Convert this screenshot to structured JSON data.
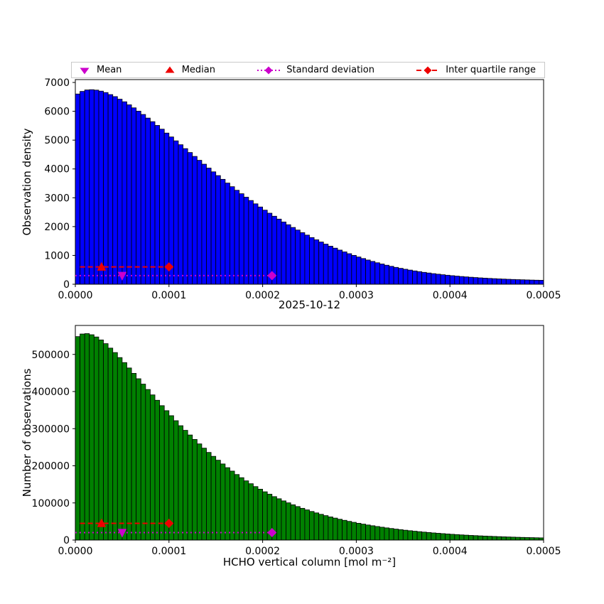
{
  "figure": {
    "date_title": "2025-10-12",
    "xlabel": "HCHO vertical column [mol m⁻²]",
    "colors": {
      "mean": "#cc00cc",
      "median": "#ee0000",
      "std": "#cc00cc",
      "iqr": "#ee0000",
      "axis": "#000000",
      "background": "#ffffff"
    },
    "legend": [
      {
        "label": "Mean",
        "marker": "triangle-down-icon"
      },
      {
        "label": "Median",
        "marker": "triangle-up-icon"
      },
      {
        "label": "Standard deviation",
        "marker": "diamond-dotted-line-icon"
      },
      {
        "label": "Inter quartile range",
        "marker": "diamond-dashed-line-icon"
      }
    ]
  },
  "chart_data": [
    {
      "type": "bar",
      "name": "observation-density-histogram",
      "ylabel": "Observation density",
      "bar_color": "#0000ff",
      "edge_color": "#000000",
      "x_start": 0,
      "x_end": 0.0005,
      "bins": 100,
      "xlim": [
        0,
        0.0005
      ],
      "ylim": [
        0,
        7100
      ],
      "xticks": {
        "values": [
          0,
          0.0001,
          0.0002,
          0.0003,
          0.0004,
          0.0005
        ],
        "labels": [
          "0.0000",
          "0.0001",
          "0.0002",
          "0.0003",
          "0.0004",
          "0.0005"
        ]
      },
      "yticks": {
        "values": [
          0,
          1000,
          2000,
          3000,
          4000,
          5000,
          6000,
          7000
        ],
        "labels": [
          "0",
          "1000",
          "2000",
          "3000",
          "4000",
          "5000",
          "6000",
          "7000"
        ]
      },
      "values": [
        6600,
        6690,
        6740,
        6750,
        6735,
        6700,
        6650,
        6580,
        6510,
        6420,
        6330,
        6225,
        6120,
        6005,
        5890,
        5765,
        5640,
        5510,
        5380,
        5245,
        5110,
        4975,
        4840,
        4705,
        4570,
        4435,
        4300,
        4165,
        4030,
        3900,
        3770,
        3640,
        3510,
        3385,
        3260,
        3140,
        3020,
        2905,
        2790,
        2680,
        2570,
        2465,
        2360,
        2260,
        2160,
        2065,
        1970,
        1880,
        1790,
        1705,
        1620,
        1542,
        1465,
        1392,
        1320,
        1252,
        1185,
        1122,
        1060,
        1002,
        945,
        892,
        840,
        792,
        745,
        702,
        660,
        622,
        585,
        552,
        520,
        491,
        462,
        437,
        412,
        390,
        368,
        349,
        330,
        313,
        297,
        282,
        268,
        255,
        243,
        232,
        221,
        211,
        202,
        194,
        186,
        179,
        172,
        166,
        160,
        155,
        150,
        145,
        141,
        137
      ],
      "stats": {
        "mean_x": 5e-05,
        "median_x": 2.8e-05,
        "std_span": [
          0,
          0.00021
        ],
        "iqr_span": [
          5e-06,
          0.0001
        ],
        "mean_line_y": 300,
        "iqr_line_y": 600
      }
    },
    {
      "type": "bar",
      "name": "number-of-observations-histogram",
      "ylabel": "Number of observations",
      "bar_color": "#008000",
      "edge_color": "#000000",
      "x_start": 0,
      "x_end": 0.0005,
      "bins": 100,
      "xlim": [
        0,
        0.0005
      ],
      "ylim": [
        0,
        578000
      ],
      "xticks": {
        "values": [
          0,
          0.0001,
          0.0002,
          0.0003,
          0.0004,
          0.0005
        ],
        "labels": [
          "0.0000",
          "0.0001",
          "0.0002",
          "0.0003",
          "0.0004",
          "0.0005"
        ]
      },
      "yticks": {
        "values": [
          0,
          100000,
          200000,
          300000,
          400000,
          500000
        ],
        "labels": [
          "0",
          "100000",
          "200000",
          "300000",
          "400000",
          "500000"
        ]
      },
      "values": [
        548000,
        555000,
        556000,
        553000,
        547000,
        539000,
        529000,
        517000,
        505000,
        491500,
        478000,
        463500,
        449000,
        434500,
        420000,
        405500,
        391000,
        376500,
        362000,
        348500,
        335000,
        321500,
        308000,
        295500,
        283000,
        271000,
        259000,
        247500,
        236000,
        225500,
        215000,
        205000,
        195000,
        185750,
        176500,
        168000,
        159500,
        151750,
        144000,
        137000,
        130000,
        123500,
        117000,
        111250,
        105500,
        100250,
        95000,
        90250,
        85500,
        81250,
        77000,
        73150,
        69300,
        65800,
        62300,
        59150,
        56000,
        53150,
        50300,
        47750,
        45200,
        42900,
        40600,
        38550,
        36500,
        34650,
        32800,
        31150,
        29500,
        28000,
        26500,
        25150,
        23800,
        22600,
        21400,
        20300,
        19200,
        18250,
        17300,
        16400,
        15500,
        14700,
        13900,
        13200,
        12500,
        11900,
        11300,
        10750,
        10200,
        9700,
        9200,
        8750,
        8300,
        7900,
        7500,
        7150,
        6800,
        6500,
        6200,
        5900
      ],
      "stats": {
        "mean_x": 5e-05,
        "median_x": 2.8e-05,
        "std_span": [
          0,
          0.00021
        ],
        "iqr_span": [
          5e-06,
          0.0001
        ],
        "mean_line_y": 20000,
        "iqr_line_y": 45000
      }
    }
  ]
}
